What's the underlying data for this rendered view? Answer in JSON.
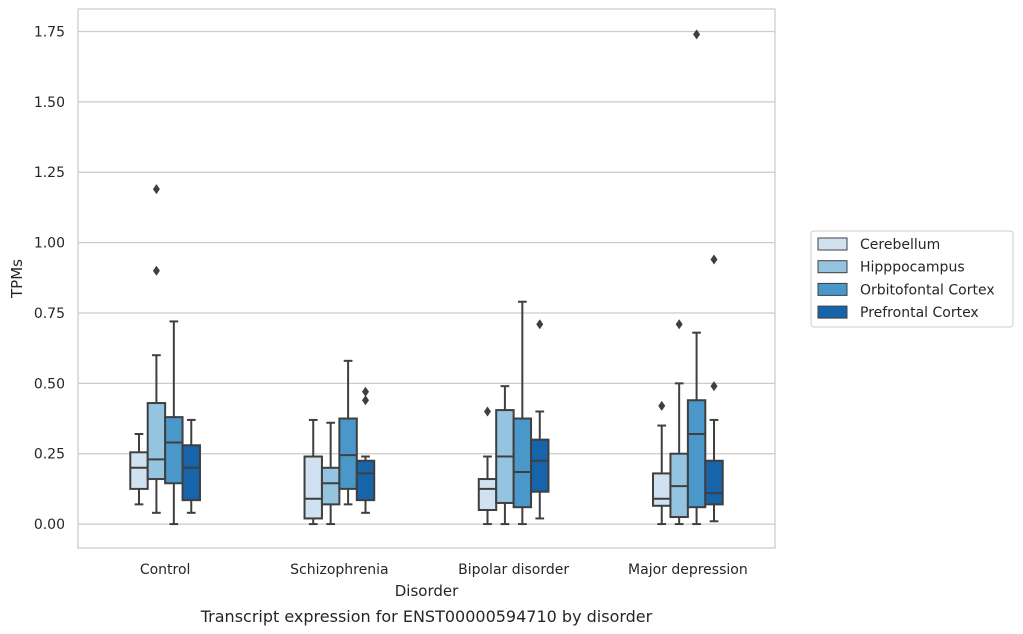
{
  "chart_data": {
    "type": "box",
    "caption": "Transcript expression for ENST00000594710 by disorder",
    "xlabel": "Disorder",
    "ylabel": "TPMs",
    "ylim": [
      -0.085,
      1.83
    ],
    "yticks": [
      0.0,
      0.25,
      0.5,
      0.75,
      1.0,
      1.25,
      1.5,
      1.75
    ],
    "ytick_labels": [
      "0.00",
      "0.25",
      "0.50",
      "0.75",
      "1.00",
      "1.25",
      "1.50",
      "1.75"
    ],
    "grid": "horizontal",
    "legend_position": "right",
    "categories": [
      "Control",
      "Schizophrenia",
      "Bipolar disorder",
      "Major depression"
    ],
    "series": [
      {
        "name": "Cerebellum",
        "color": "#d0e1f2",
        "boxes": [
          {
            "whislo": 0.07,
            "q1": 0.125,
            "med": 0.2,
            "q3": 0.255,
            "whishi": 0.32,
            "fliers": []
          },
          {
            "whislo": 0.0,
            "q1": 0.02,
            "med": 0.09,
            "q3": 0.24,
            "whishi": 0.37,
            "fliers": []
          },
          {
            "whislo": 0.0,
            "q1": 0.05,
            "med": 0.125,
            "q3": 0.16,
            "whishi": 0.24,
            "fliers": [
              0.4
            ]
          },
          {
            "whislo": 0.0,
            "q1": 0.065,
            "med": 0.09,
            "q3": 0.18,
            "whishi": 0.35,
            "fliers": [
              0.42
            ]
          }
        ]
      },
      {
        "name": "Hipppocampus",
        "color": "#94c4df",
        "boxes": [
          {
            "whislo": 0.04,
            "q1": 0.16,
            "med": 0.23,
            "q3": 0.43,
            "whishi": 0.6,
            "fliers": [
              0.9,
              1.19
            ]
          },
          {
            "whislo": 0.0,
            "q1": 0.07,
            "med": 0.145,
            "q3": 0.2,
            "whishi": 0.36,
            "fliers": []
          },
          {
            "whislo": 0.0,
            "q1": 0.075,
            "med": 0.24,
            "q3": 0.405,
            "whishi": 0.49,
            "fliers": []
          },
          {
            "whislo": 0.0,
            "q1": 0.025,
            "med": 0.135,
            "q3": 0.25,
            "whishi": 0.5,
            "fliers": [
              0.71
            ]
          }
        ]
      },
      {
        "name": "Orbitofontal Cortex",
        "color": "#4a98c9",
        "boxes": [
          {
            "whislo": 0.0,
            "q1": 0.145,
            "med": 0.29,
            "q3": 0.38,
            "whishi": 0.72,
            "fliers": []
          },
          {
            "whislo": 0.07,
            "q1": 0.125,
            "med": 0.245,
            "q3": 0.375,
            "whishi": 0.58,
            "fliers": []
          },
          {
            "whislo": 0.0,
            "q1": 0.06,
            "med": 0.185,
            "q3": 0.375,
            "whishi": 0.79,
            "fliers": []
          },
          {
            "whislo": 0.0,
            "q1": 0.06,
            "med": 0.32,
            "q3": 0.44,
            "whishi": 0.68,
            "fliers": [
              1.74
            ]
          }
        ]
      },
      {
        "name": "Prefrontal Cortex",
        "color": "#1764ab",
        "boxes": [
          {
            "whislo": 0.04,
            "q1": 0.085,
            "med": 0.2,
            "q3": 0.28,
            "whishi": 0.37,
            "fliers": []
          },
          {
            "whislo": 0.04,
            "q1": 0.085,
            "med": 0.18,
            "q3": 0.225,
            "whishi": 0.24,
            "fliers": [
              0.44,
              0.47
            ]
          },
          {
            "whislo": 0.02,
            "q1": 0.115,
            "med": 0.225,
            "q3": 0.3,
            "whishi": 0.4,
            "fliers": [
              0.71
            ]
          },
          {
            "whislo": 0.01,
            "q1": 0.07,
            "med": 0.11,
            "q3": 0.225,
            "whishi": 0.37,
            "fliers": [
              0.49,
              0.94
            ]
          }
        ]
      }
    ]
  }
}
